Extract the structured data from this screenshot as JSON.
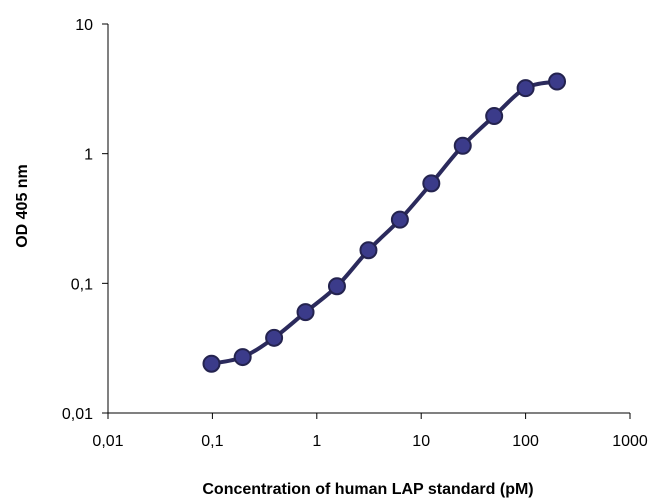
{
  "chart_data": {
    "type": "line",
    "xscale": "log",
    "yscale": "log",
    "xlabel": "Concentration of human LAP standard (pM)",
    "ylabel": "OD 405 nm",
    "xlim": [
      0.01,
      1000
    ],
    "ylim": [
      0.01,
      10
    ],
    "x_ticks": [
      {
        "value": 0.01,
        "label": "0,01"
      },
      {
        "value": 0.1,
        "label": "0,1"
      },
      {
        "value": 1,
        "label": "1"
      },
      {
        "value": 10,
        "label": "10"
      },
      {
        "value": 100,
        "label": "100"
      },
      {
        "value": 1000,
        "label": "1000"
      }
    ],
    "y_ticks": [
      {
        "value": 0.01,
        "label": "0,01"
      },
      {
        "value": 0.1,
        "label": "0,1"
      },
      {
        "value": 1,
        "label": "1"
      },
      {
        "value": 10,
        "label": "10"
      }
    ],
    "grid": false,
    "legend": "none",
    "series": [
      {
        "x": [
          0.098,
          0.195,
          0.39,
          0.78,
          1.56,
          3.125,
          6.25,
          12.5,
          25,
          50,
          100,
          200
        ],
        "y": [
          0.024,
          0.027,
          0.038,
          0.06,
          0.095,
          0.18,
          0.31,
          0.59,
          1.15,
          1.95,
          3.2,
          3.6
        ],
        "line_color": "#2b2a5c",
        "marker_color": "#3b3b8a",
        "marker_edge_color": "#24234f"
      }
    ]
  }
}
